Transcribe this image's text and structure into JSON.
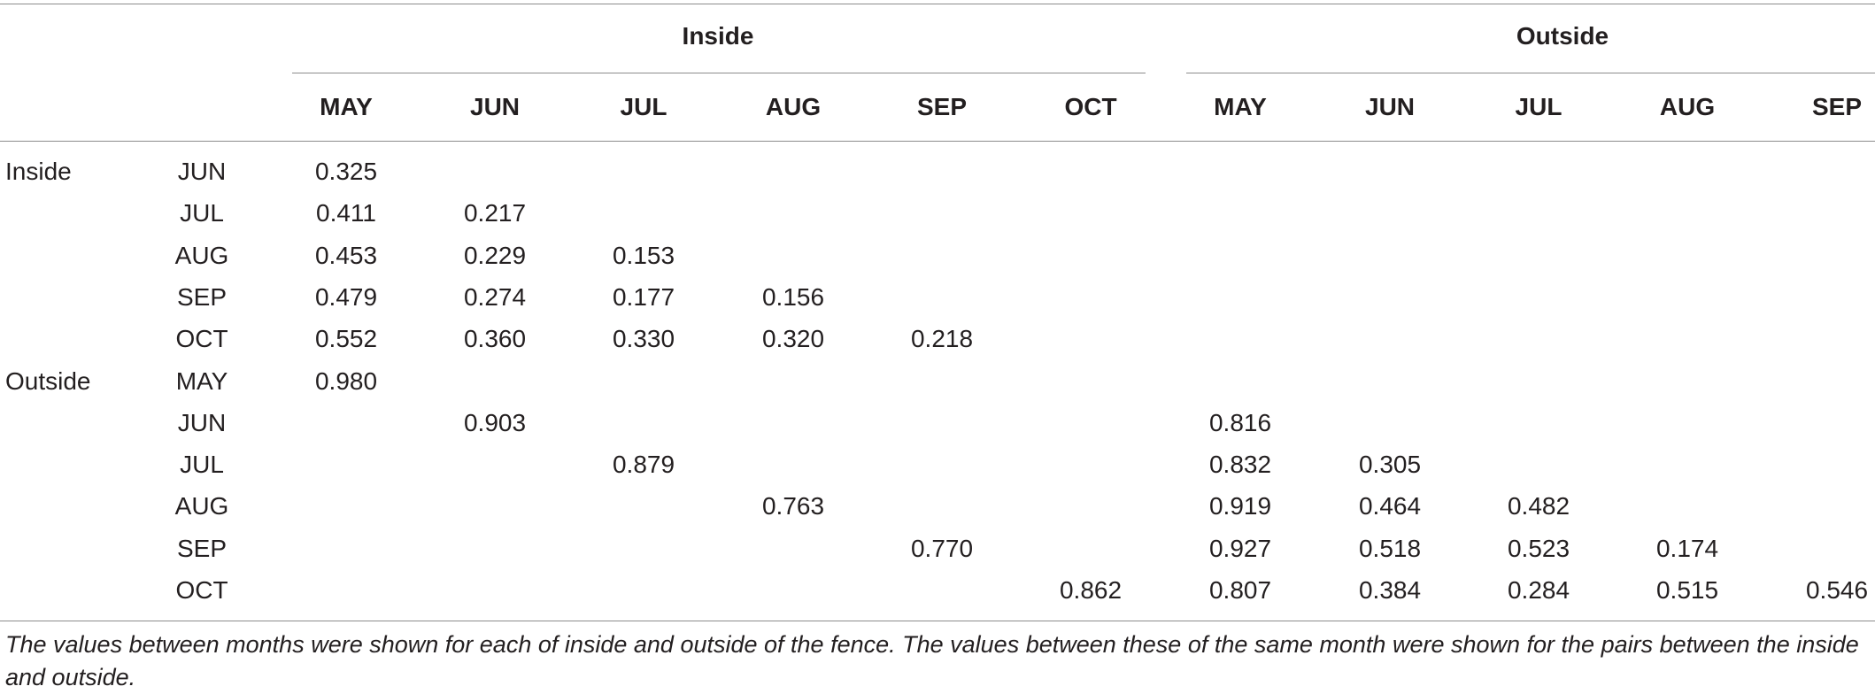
{
  "table": {
    "group_headers": [
      "Inside",
      "Outside"
    ],
    "column_headers": [
      "MAY",
      "JUN",
      "JUL",
      "AUG",
      "SEP",
      "OCT",
      "MAY",
      "JUN",
      "JUL",
      "AUG",
      "SEP"
    ],
    "rows": [
      {
        "group": "Inside",
        "month": "JUN",
        "values": [
          "0.325",
          "",
          "",
          "",
          "",
          "",
          "",
          "",
          "",
          "",
          ""
        ]
      },
      {
        "group": "",
        "month": "JUL",
        "values": [
          "0.411",
          "0.217",
          "",
          "",
          "",
          "",
          "",
          "",
          "",
          "",
          ""
        ]
      },
      {
        "group": "",
        "month": "AUG",
        "values": [
          "0.453",
          "0.229",
          "0.153",
          "",
          "",
          "",
          "",
          "",
          "",
          "",
          ""
        ]
      },
      {
        "group": "",
        "month": "SEP",
        "values": [
          "0.479",
          "0.274",
          "0.177",
          "0.156",
          "",
          "",
          "",
          "",
          "",
          "",
          ""
        ]
      },
      {
        "group": "",
        "month": "OCT",
        "values": [
          "0.552",
          "0.360",
          "0.330",
          "0.320",
          "0.218",
          "",
          "",
          "",
          "",
          "",
          ""
        ]
      },
      {
        "group": "Outside",
        "month": "MAY",
        "values": [
          "0.980",
          "",
          "",
          "",
          "",
          "",
          "",
          "",
          "",
          "",
          ""
        ]
      },
      {
        "group": "",
        "month": "JUN",
        "values": [
          "",
          "0.903",
          "",
          "",
          "",
          "",
          "0.816",
          "",
          "",
          "",
          ""
        ]
      },
      {
        "group": "",
        "month": "JUL",
        "values": [
          "",
          "",
          "0.879",
          "",
          "",
          "",
          "0.832",
          "0.305",
          "",
          "",
          ""
        ]
      },
      {
        "group": "",
        "month": "AUG",
        "values": [
          "",
          "",
          "",
          "0.763",
          "",
          "",
          "0.919",
          "0.464",
          "0.482",
          "",
          ""
        ]
      },
      {
        "group": "",
        "month": "SEP",
        "values": [
          "",
          "",
          "",
          "",
          "0.770",
          "",
          "0.927",
          "0.518",
          "0.523",
          "0.174",
          ""
        ]
      },
      {
        "group": "",
        "month": "OCT",
        "values": [
          "",
          "",
          "",
          "",
          "",
          "0.862",
          "0.807",
          "0.384",
          "0.284",
          "0.515",
          "0.546"
        ]
      }
    ],
    "footnote": "The values between months were shown for each of inside and outside of the fence. The values between these of the same month were shown for the pairs between the inside and outside."
  }
}
